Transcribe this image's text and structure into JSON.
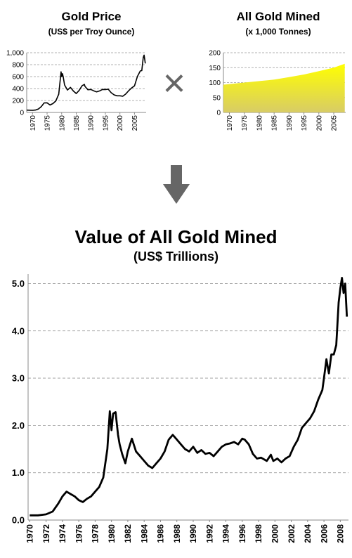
{
  "operator_symbol": "×",
  "arrow": "down-arrow-icon",
  "colors": {
    "line": "#000000",
    "grid": "#999999",
    "fill_top": "#ffff00",
    "fill_bottom": "#d8cc66",
    "arrow": "#666666",
    "operator": "#666666"
  },
  "chart_data": [
    {
      "type": "line",
      "title": "Gold Price",
      "subtitle": "(US$ per Troy Ounce)",
      "xlabel": "",
      "ylabel": "",
      "xlim": [
        1968,
        2009
      ],
      "ylim": [
        0,
        1000
      ],
      "xticks": [
        1970,
        1975,
        1980,
        1985,
        1990,
        1995,
        2000,
        2005
      ],
      "xtick_labels": [
        "1970",
        "1975",
        "1980",
        "1985",
        "1990",
        "1995",
        "2000",
        "2005"
      ],
      "yticks": [
        0,
        200,
        400,
        600,
        800,
        1000
      ],
      "ytick_labels": [
        "0",
        "200",
        "400",
        "600",
        "800",
        "1,000"
      ],
      "grid": "horizontal-dashed",
      "x": [
        1968,
        1970,
        1971,
        1972,
        1973,
        1974,
        1975,
        1976,
        1977,
        1978,
        1979,
        1979.8,
        1980,
        1980.3,
        1980.6,
        1981,
        1982,
        1983,
        1984,
        1985,
        1986,
        1987,
        1987.8,
        1988,
        1989,
        1990,
        1991,
        1992,
        1993,
        1994,
        1995,
        1996,
        1997,
        1998,
        1999,
        2000,
        2001,
        2002,
        2003,
        2004,
        2005,
        2006,
        2007,
        2007.5,
        2008,
        2008.3,
        2008.7
      ],
      "y": [
        39,
        36,
        40,
        58,
        97,
        160,
        161,
        125,
        148,
        193,
        306,
        680,
        600,
        650,
        580,
        460,
        375,
        420,
        360,
        317,
        368,
        446,
        470,
        437,
        380,
        385,
        362,
        345,
        360,
        385,
        384,
        388,
        330,
        294,
        279,
        279,
        272,
        310,
        364,
        410,
        445,
        604,
        695,
        700,
        920,
        960,
        820
      ]
    },
    {
      "type": "area",
      "title": "All Gold Mined",
      "subtitle": "(x 1,000 Tonnes)",
      "xlabel": "",
      "ylabel": "",
      "xlim": [
        1968,
        2009
      ],
      "ylim": [
        0,
        200
      ],
      "xticks": [
        1970,
        1975,
        1980,
        1985,
        1990,
        1995,
        2000,
        2005
      ],
      "xtick_labels": [
        "1970",
        "1975",
        "1980",
        "1985",
        "1990",
        "1995",
        "2000",
        "2005"
      ],
      "yticks": [
        0,
        50,
        100,
        150,
        200
      ],
      "ytick_labels": [
        "0",
        "50",
        "100",
        "150",
        "200"
      ],
      "grid": "horizontal-dashed",
      "x": [
        1968,
        1975,
        1980,
        1985,
        1990,
        1995,
        2000,
        2005,
        2008.7
      ],
      "y": [
        93,
        100,
        105,
        110,
        118,
        127,
        138,
        150,
        163
      ]
    },
    {
      "type": "line",
      "title": "Value of All Gold Mined",
      "subtitle": "(US$ Trillions)",
      "xlabel": "",
      "ylabel": "",
      "xlim": [
        1969.8,
        2009
      ],
      "ylim": [
        0,
        5.2
      ],
      "xticks": [
        1970,
        1972,
        1974,
        1976,
        1978,
        1980,
        1982,
        1984,
        1986,
        1988,
        1990,
        1992,
        1994,
        1996,
        1998,
        2000,
        2002,
        2004,
        2006,
        2008
      ],
      "xtick_labels": [
        "1970",
        "1972",
        "1974",
        "1976",
        "1978",
        "1980",
        "1982",
        "1984",
        "1986",
        "1988",
        "1990",
        "1992",
        "1994",
        "1996",
        "1998",
        "2000",
        "2002",
        "2004",
        "2006",
        "2008"
      ],
      "yticks": [
        0,
        1,
        2,
        3,
        4,
        5
      ],
      "ytick_labels": [
        "0.0",
        "1.0",
        "2.0",
        "3.0",
        "4.0",
        "5.0"
      ],
      "grid": "horizontal-dashed",
      "x": [
        1970,
        1971,
        1972,
        1972.8,
        1973.5,
        1974,
        1974.5,
        1975,
        1975.5,
        1976,
        1976.5,
        1977,
        1977.5,
        1978,
        1978.5,
        1979,
        1979.5,
        1979.8,
        1980,
        1980.2,
        1980.5,
        1980.8,
        1981,
        1981.3,
        1981.7,
        1982,
        1982.5,
        1983,
        1983.5,
        1984,
        1984.5,
        1985,
        1985.5,
        1986,
        1986.5,
        1987,
        1987.5,
        1987.9,
        1988.5,
        1989,
        1989.5,
        1990,
        1990.5,
        1991,
        1991.5,
        1992,
        1992.5,
        1993,
        1993.5,
        1994,
        1994.5,
        1995,
        1995.5,
        1996,
        1996.3,
        1996.8,
        1997.3,
        1997.8,
        1998.3,
        1999,
        1999.5,
        1999.8,
        2000.3,
        2000.8,
        2001.3,
        2001.8,
        2002.3,
        2002.8,
        2003.3,
        2003.8,
        2004.3,
        2004.8,
        2005.3,
        2005.8,
        2006,
        2006.3,
        2006.6,
        2006.9,
        2007.2,
        2007.5,
        2007.8,
        2008,
        2008.2,
        2008.4,
        2008.6,
        2008.8
      ],
      "y": [
        0.1,
        0.1,
        0.12,
        0.18,
        0.35,
        0.5,
        0.6,
        0.55,
        0.5,
        0.42,
        0.38,
        0.45,
        0.5,
        0.6,
        0.7,
        0.9,
        1.5,
        2.3,
        1.9,
        2.25,
        2.28,
        1.8,
        1.6,
        1.4,
        1.2,
        1.45,
        1.72,
        1.45,
        1.35,
        1.25,
        1.15,
        1.1,
        1.2,
        1.3,
        1.45,
        1.7,
        1.8,
        1.72,
        1.6,
        1.5,
        1.45,
        1.55,
        1.42,
        1.48,
        1.4,
        1.42,
        1.35,
        1.45,
        1.55,
        1.6,
        1.62,
        1.65,
        1.6,
        1.72,
        1.7,
        1.6,
        1.4,
        1.3,
        1.32,
        1.25,
        1.38,
        1.25,
        1.3,
        1.22,
        1.3,
        1.35,
        1.55,
        1.7,
        1.95,
        2.05,
        2.15,
        2.3,
        2.55,
        2.75,
        3.0,
        3.4,
        3.1,
        3.5,
        3.5,
        3.7,
        4.6,
        4.9,
        5.12,
        4.8,
        5.0,
        4.3
      ]
    }
  ]
}
